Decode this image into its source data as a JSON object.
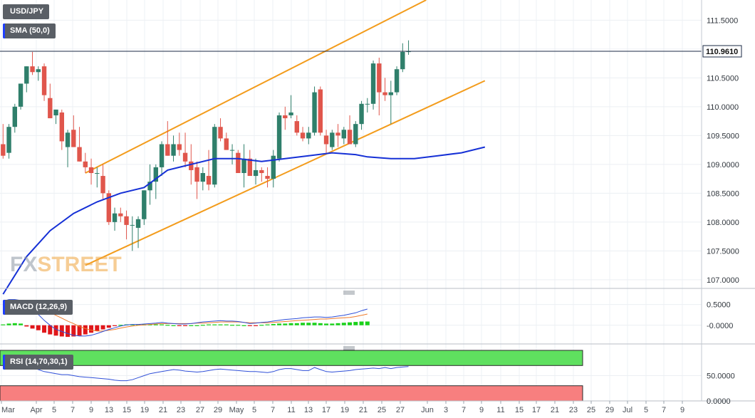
{
  "header": {
    "symbol": "USD/JPY",
    "indicator": "SMA (50,0)"
  },
  "watermark": {
    "part1": "FX",
    "part2": "STREET"
  },
  "colors": {
    "bull": "#2f7f6b",
    "bear": "#e0564c",
    "sma": "#1530d6",
    "channel": "#f39c1c",
    "macd_line": "#2f4fd8",
    "signal_line": "#f07a2a",
    "hist_pos": "#19d119",
    "hist_neg": "#e0161a",
    "rsi_line": "#2f4fd8",
    "rsi_overbought": "#5fe05f",
    "rsi_oversold": "#f77f7f"
  },
  "price_axis": {
    "ticks": [
      "111.5000",
      "111.0000",
      "110.5000",
      "110.0000",
      "109.5000",
      "109.0000",
      "108.5000",
      "108.0000",
      "107.5000",
      "107.0000"
    ],
    "current": "110.9610"
  },
  "x_axis": {
    "ticks": [
      "Mar",
      "Apr",
      "5",
      "7",
      "9",
      "13",
      "15",
      "19",
      "21",
      "23",
      "27",
      "29",
      "May",
      "5",
      "7",
      "11",
      "13",
      "17",
      "19",
      "21",
      "25",
      "27",
      "Jun",
      "3",
      "7",
      "9",
      "11",
      "15",
      "17",
      "21",
      "23",
      "25",
      "29",
      "Jul",
      "5",
      "7",
      "9"
    ]
  },
  "macd": {
    "label": "MACD (12,26,9)",
    "ticks": [
      "0.5000",
      "-0.0000"
    ]
  },
  "rsi": {
    "label": "RSI (14,70,30,1)",
    "ticks": [
      "50.0000",
      "0.0000"
    ]
  },
  "chart_data": [
    {
      "type": "candlestick",
      "title": "USD/JPY",
      "ylim": [
        106.85,
        111.85
      ],
      "series_fields": [
        "open",
        "high",
        "low",
        "close"
      ],
      "candles": [
        [
          109.35,
          109.7,
          109.1,
          109.15
        ],
        [
          109.2,
          109.7,
          109.1,
          109.65
        ],
        [
          109.65,
          110.05,
          109.55,
          110.0
        ],
        [
          110.0,
          110.4,
          109.95,
          110.4
        ],
        [
          110.4,
          110.7,
          110.25,
          110.7
        ],
        [
          110.7,
          110.95,
          110.55,
          110.6
        ],
        [
          110.6,
          110.7,
          110.45,
          110.65
        ],
        [
          110.7,
          110.75,
          110.1,
          110.2
        ],
        [
          110.15,
          110.4,
          109.8,
          109.8
        ],
        [
          109.85,
          109.95,
          109.7,
          109.95
        ],
        [
          109.9,
          109.95,
          109.25,
          109.4
        ],
        [
          109.3,
          109.6,
          108.95,
          109.55
        ],
        [
          109.6,
          109.85,
          109.3,
          109.3
        ],
        [
          109.3,
          109.65,
          109.05,
          109.05
        ],
        [
          109.05,
          109.2,
          108.85,
          108.95
        ],
        [
          108.95,
          109.1,
          108.65,
          108.85
        ],
        [
          108.85,
          108.95,
          108.6,
          108.85
        ],
        [
          108.8,
          109.0,
          108.4,
          108.5
        ],
        [
          108.5,
          108.55,
          107.95,
          108.0
        ],
        [
          108.0,
          108.25,
          107.85,
          108.15
        ],
        [
          108.15,
          108.25,
          108.0,
          108.1
        ],
        [
          108.1,
          108.2,
          107.7,
          107.95
        ],
        [
          107.95,
          108.1,
          107.5,
          107.95
        ],
        [
          107.9,
          108.1,
          107.55,
          108.05
        ],
        [
          108.05,
          108.55,
          107.95,
          108.55
        ],
        [
          108.55,
          109.0,
          108.3,
          108.7
        ],
        [
          108.7,
          109.0,
          108.4,
          108.95
        ],
        [
          108.95,
          109.4,
          108.8,
          109.35
        ],
        [
          109.35,
          109.75,
          109.15,
          109.15
        ],
        [
          109.15,
          109.5,
          109.05,
          109.35
        ],
        [
          109.35,
          109.55,
          109.15,
          109.25
        ],
        [
          109.2,
          109.55,
          108.95,
          109.05
        ],
        [
          109.05,
          109.35,
          108.65,
          108.9
        ],
        [
          108.95,
          109.05,
          108.4,
          108.7
        ],
        [
          108.7,
          108.95,
          108.55,
          108.85
        ],
        [
          108.8,
          109.25,
          108.55,
          108.65
        ],
        [
          108.65,
          109.7,
          108.6,
          109.65
        ],
        [
          109.65,
          109.8,
          109.4,
          109.45
        ],
        [
          109.45,
          109.55,
          109.25,
          109.25
        ],
        [
          109.25,
          109.35,
          109.0,
          109.25
        ],
        [
          109.2,
          109.25,
          108.85,
          108.85
        ],
        [
          108.85,
          109.35,
          108.6,
          109.1
        ],
        [
          109.1,
          109.25,
          108.85,
          108.8
        ],
        [
          108.8,
          109.1,
          108.65,
          108.9
        ],
        [
          108.9,
          108.95,
          108.7,
          108.85
        ],
        [
          108.8,
          108.95,
          108.6,
          108.75
        ],
        [
          108.75,
          109.25,
          108.6,
          109.15
        ],
        [
          109.1,
          109.9,
          109.05,
          109.85
        ],
        [
          109.85,
          110.0,
          109.6,
          109.8
        ],
        [
          109.85,
          110.2,
          109.8,
          109.9
        ],
        [
          109.75,
          109.85,
          109.5,
          109.55
        ],
        [
          109.55,
          109.65,
          109.4,
          109.45
        ],
        [
          109.45,
          109.65,
          109.35,
          109.55
        ],
        [
          109.55,
          110.35,
          109.5,
          110.25
        ],
        [
          110.3,
          110.35,
          109.5,
          109.55
        ],
        [
          109.5,
          109.6,
          109.2,
          109.35
        ],
        [
          109.3,
          109.6,
          109.25,
          109.55
        ],
        [
          109.55,
          109.7,
          109.3,
          109.5
        ],
        [
          109.45,
          109.65,
          109.35,
          109.6
        ],
        [
          109.6,
          109.85,
          109.35,
          109.35
        ],
        [
          109.35,
          109.75,
          109.3,
          109.7
        ],
        [
          109.7,
          110.1,
          109.6,
          110.05
        ],
        [
          110.05,
          110.15,
          109.9,
          110.05
        ],
        [
          110.05,
          110.8,
          109.95,
          110.75
        ],
        [
          110.75,
          110.85,
          109.85,
          110.25
        ],
        [
          110.25,
          110.5,
          110.1,
          110.2
        ],
        [
          110.2,
          110.45,
          109.7,
          110.25
        ],
        [
          110.25,
          110.7,
          110.2,
          110.65
        ],
        [
          110.65,
          111.1,
          110.6,
          110.95
        ],
        [
          110.95,
          111.15,
          110.9,
          110.96
        ]
      ]
    },
    {
      "type": "line",
      "title": "SMA (50,0)",
      "x": [
        0,
        4,
        8,
        12,
        16,
        20,
        24,
        28,
        32,
        36,
        40,
        44,
        48,
        52,
        56,
        60,
        62,
        66,
        70,
        74,
        78,
        82
      ],
      "y": [
        106.75,
        107.4,
        107.85,
        108.15,
        108.35,
        108.5,
        108.6,
        108.9,
        109.0,
        109.1,
        109.1,
        109.05,
        109.1,
        109.15,
        109.2,
        109.17,
        109.13,
        109.1,
        109.1,
        109.15,
        109.2,
        109.3
      ]
    },
    {
      "type": "line",
      "title": "Ascending channel",
      "lines": [
        {
          "x": [
            14,
            72
          ],
          "y": [
            108.85,
            111.85
          ]
        },
        {
          "x": [
            14,
            82
          ],
          "y": [
            107.25,
            110.45
          ]
        }
      ]
    },
    {
      "type": "bar",
      "title": "MACD (12,26,9)",
      "ylim": [
        -0.45,
        0.75
      ],
      "macd_line": [
        0.58,
        0.62,
        0.62,
        0.6,
        0.52,
        0.4,
        0.26,
        0.12,
        0.0,
        -0.1,
        -0.15,
        -0.2,
        -0.24,
        -0.26,
        -0.26,
        -0.24,
        -0.2,
        -0.15,
        -0.1,
        -0.06,
        -0.02,
        0.01,
        0.02,
        0.02,
        0.03,
        0.04,
        0.05,
        0.07,
        0.05,
        0.04,
        0.03,
        0.03,
        0.04,
        0.06,
        0.08,
        0.09,
        0.1,
        0.11,
        0.1,
        0.1,
        0.09,
        0.07,
        0.04,
        0.05,
        0.07,
        0.08,
        0.1,
        0.12,
        0.14,
        0.15,
        0.16,
        0.18,
        0.19,
        0.2,
        0.2,
        0.19,
        0.2,
        0.22,
        0.24,
        0.27,
        0.3,
        0.35,
        0.39
      ],
      "signal_line": [
        0.55,
        0.56,
        0.57,
        0.56,
        0.54,
        0.5,
        0.44,
        0.38,
        0.31,
        0.24,
        0.17,
        0.1,
        0.04,
        -0.03,
        -0.08,
        -0.12,
        -0.14,
        -0.14,
        -0.12,
        -0.1,
        -0.07,
        -0.04,
        -0.02,
        0.0,
        0.01,
        0.02,
        0.03,
        0.04,
        0.04,
        0.04,
        0.04,
        0.04,
        0.04,
        0.05,
        0.05,
        0.06,
        0.07,
        0.08,
        0.08,
        0.08,
        0.08,
        0.07,
        0.06,
        0.06,
        0.06,
        0.06,
        0.07,
        0.08,
        0.09,
        0.1,
        0.11,
        0.12,
        0.13,
        0.14,
        0.15,
        0.15,
        0.16,
        0.17,
        0.18,
        0.19,
        0.21,
        0.24,
        0.27
      ],
      "histogram": [
        0.02,
        0.04,
        0.05,
        0.04,
        -0.03,
        -0.08,
        -0.12,
        -0.18,
        -0.22,
        -0.25,
        -0.27,
        -0.28,
        -0.27,
        -0.25,
        -0.22,
        -0.18,
        -0.14,
        -0.1,
        -0.06,
        -0.02,
        0.01,
        0.02,
        0.02,
        0.02,
        0.02,
        0.02,
        0.02,
        0.02,
        0.01,
        0.0,
        -0.01,
        -0.01,
        0.0,
        0.0,
        0.01,
        0.02,
        0.02,
        0.02,
        0.02,
        0.01,
        0.01,
        0.0,
        -0.02,
        -0.01,
        0.01,
        0.02,
        0.03,
        0.04,
        0.04,
        0.05,
        0.05,
        0.06,
        0.06,
        0.06,
        0.05,
        0.04,
        0.04,
        0.05,
        0.06,
        0.07,
        0.08,
        0.09,
        0.09
      ]
    },
    {
      "type": "line",
      "title": "RSI (14,70,30,1)",
      "ylim": [
        0,
        100
      ],
      "overbought": 70,
      "oversold": 30,
      "values": [
        71,
        72,
        74,
        72,
        70,
        66,
        62,
        58,
        56,
        54,
        52,
        52,
        50,
        48,
        47,
        46,
        45,
        44,
        43,
        41,
        40,
        40,
        42,
        46,
        50,
        54,
        56,
        58,
        60,
        62,
        61,
        59,
        58,
        57,
        58,
        60,
        62,
        63,
        62,
        61,
        60,
        59,
        58,
        58,
        57,
        56,
        58,
        62,
        64,
        64,
        62,
        60,
        60,
        66,
        62,
        58,
        57,
        58,
        59,
        60,
        62,
        63,
        64,
        65,
        64,
        66,
        64,
        66,
        67,
        68
      ]
    }
  ]
}
